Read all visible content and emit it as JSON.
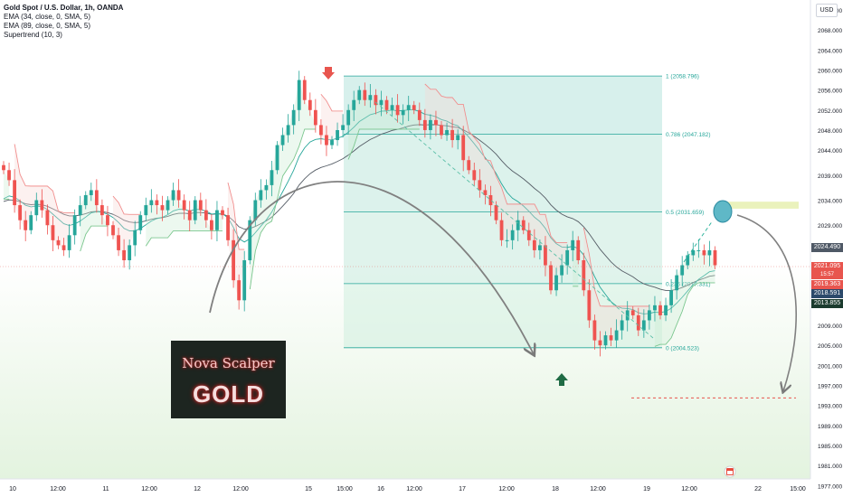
{
  "header": {
    "title": "Gold Spot / U.S. Dollar, 1h, OANDA",
    "indicators": [
      "EMA (34, close, 0, SMA, 5)",
      "EMA (89, close, 0, SMA, 5)",
      "Supertrend (10, 3)"
    ],
    "currency": "USD"
  },
  "badges": [
    {
      "text": "2024.490"
    },
    {
      "text": "2021.095"
    },
    {
      "text": "15:57"
    },
    {
      "text": "2019.363"
    },
    {
      "text": "2018.591"
    },
    {
      "text": "2013.855"
    }
  ],
  "logo": {
    "line1": "Nova Scalper",
    "line2": "GOLD"
  },
  "colors": {
    "up": "#26a69a",
    "down": "#ef5350",
    "fib": "#26a69a",
    "ema34": "#26a69a",
    "ema89": "#555d66",
    "supertrend_down": "#f08080",
    "supertrend_up": "#6bbf80"
  },
  "chart_data": {
    "type": "candlestick",
    "title": "Gold Spot / U.S. Dollar, 1h, OANDA",
    "y_ticks": [
      2072,
      2068,
      2064,
      2060,
      2056,
      2052,
      2048,
      2044,
      2039,
      2034,
      2029,
      2025,
      2021,
      2017,
      2013,
      2009,
      2005,
      2001,
      1997,
      1993,
      1989,
      1985,
      1981,
      1977
    ],
    "y_tick_labels": [
      "2072.000",
      "2068.000",
      "2064.000",
      "2060.000",
      "2056.000",
      "2052.000",
      "2048.000",
      "2044.000",
      "2039.000",
      "2034.000",
      "2029.000",
      "2025.000",
      "2021.000",
      "2017.000",
      "2013.000",
      "2009.000",
      "2005.000",
      "2001.000",
      "1997.000",
      "1993.000",
      "1989.000",
      "1985.000",
      "1981.000",
      "1977.000"
    ],
    "ylim": [
      1976,
      2074
    ],
    "x_tick_labels": [
      "10",
      "12:00",
      "11",
      "12:00",
      "12",
      "12:00",
      "15",
      "15:00",
      "16",
      "12:00",
      "17",
      "12:00",
      "18",
      "12:00",
      "19",
      "12:00",
      "22",
      "15:00"
    ],
    "fib_levels": [
      {
        "label": "1 (2058.796)",
        "price": 2058.796
      },
      {
        "label": "0.786 (2047.182)",
        "price": 2047.182
      },
      {
        "label": "0.5 (2031.659)",
        "price": 2031.659
      },
      {
        "label": "0.236 (2017.331)",
        "price": 2017.331
      },
      {
        "label": "0 (2004.523)",
        "price": 2004.523
      }
    ],
    "target_price": 1994.5,
    "resistance_zone": [
      2032.3,
      2033.7
    ],
    "close": [
      2040,
      2038,
      2033,
      2030,
      2028,
      2031,
      2034,
      2032,
      2029,
      2026,
      2025,
      2024,
      2027,
      2031,
      2033,
      2035,
      2036,
      2033,
      2031,
      2029,
      2027,
      2024,
      2022,
      2025,
      2028,
      2031,
      2033,
      2034,
      2033,
      2032,
      2034,
      2036,
      2034,
      2032,
      2030,
      2034,
      2032,
      2030,
      2028,
      2032,
      2031,
      2026,
      2018,
      2014,
      2022,
      2030,
      2034,
      2036,
      2037,
      2040,
      2045,
      2047,
      2049,
      2052,
      2058,
      2054,
      2052,
      2049,
      2047,
      2045,
      2046,
      2048,
      2049,
      2052,
      2054,
      2056,
      2054,
      2055,
      2053,
      2054,
      2052,
      2053,
      2051,
      2052,
      2053,
      2052,
      2050,
      2048,
      2050,
      2049,
      2047,
      2048,
      2046,
      2047,
      2042,
      2040,
      2038,
      2036,
      2035,
      2033,
      2030,
      2026,
      2026,
      2028,
      2030,
      2028,
      2026,
      2024,
      2025,
      2021,
      2016,
      2019,
      2021,
      2024,
      2026,
      2022,
      2016,
      2010,
      2006,
      2005,
      2007,
      2006,
      2008,
      2010,
      2012,
      2011,
      2008,
      2010,
      2012,
      2013,
      2011,
      2013,
      2016,
      2019,
      2021,
      2023,
      2024,
      2024,
      2023,
      2024,
      2021
    ]
  }
}
